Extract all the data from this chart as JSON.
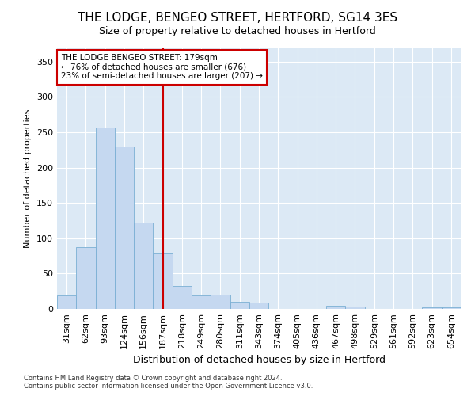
{
  "title": "THE LODGE, BENGEO STREET, HERTFORD, SG14 3ES",
  "subtitle": "Size of property relative to detached houses in Hertford",
  "xlabel": "Distribution of detached houses by size in Hertford",
  "ylabel": "Number of detached properties",
  "categories": [
    "31sqm",
    "62sqm",
    "93sqm",
    "124sqm",
    "156sqm",
    "187sqm",
    "218sqm",
    "249sqm",
    "280sqm",
    "311sqm",
    "343sqm",
    "374sqm",
    "405sqm",
    "436sqm",
    "467sqm",
    "498sqm",
    "529sqm",
    "561sqm",
    "592sqm",
    "623sqm",
    "654sqm"
  ],
  "values": [
    19,
    87,
    257,
    230,
    122,
    78,
    33,
    19,
    20,
    10,
    9,
    0,
    0,
    0,
    5,
    3,
    0,
    0,
    0,
    2,
    2
  ],
  "bar_color": "#c5d8f0",
  "bar_edge_color": "#7aafd4",
  "ref_line_color": "#cc0000",
  "annotation_line1": "THE LODGE BENGEO STREET: 179sqm",
  "annotation_line2": "← 76% of detached houses are smaller (676)",
  "annotation_line3": "23% of semi-detached houses are larger (207) →",
  "annotation_box_facecolor": "#ffffff",
  "annotation_box_edgecolor": "#cc0000",
  "ylim": [
    0,
    370
  ],
  "yticks": [
    0,
    50,
    100,
    150,
    200,
    250,
    300,
    350
  ],
  "bg_color": "#ffffff",
  "plot_bg_color": "#dce9f5",
  "grid_color": "#ffffff",
  "footer1": "Contains HM Land Registry data © Crown copyright and database right 2024.",
  "footer2": "Contains public sector information licensed under the Open Government Licence v3.0.",
  "title_fontsize": 11,
  "subtitle_fontsize": 9,
  "xlabel_fontsize": 9,
  "ylabel_fontsize": 8,
  "tick_fontsize": 8,
  "footer_fontsize": 6,
  "annotation_fontsize": 7.5
}
